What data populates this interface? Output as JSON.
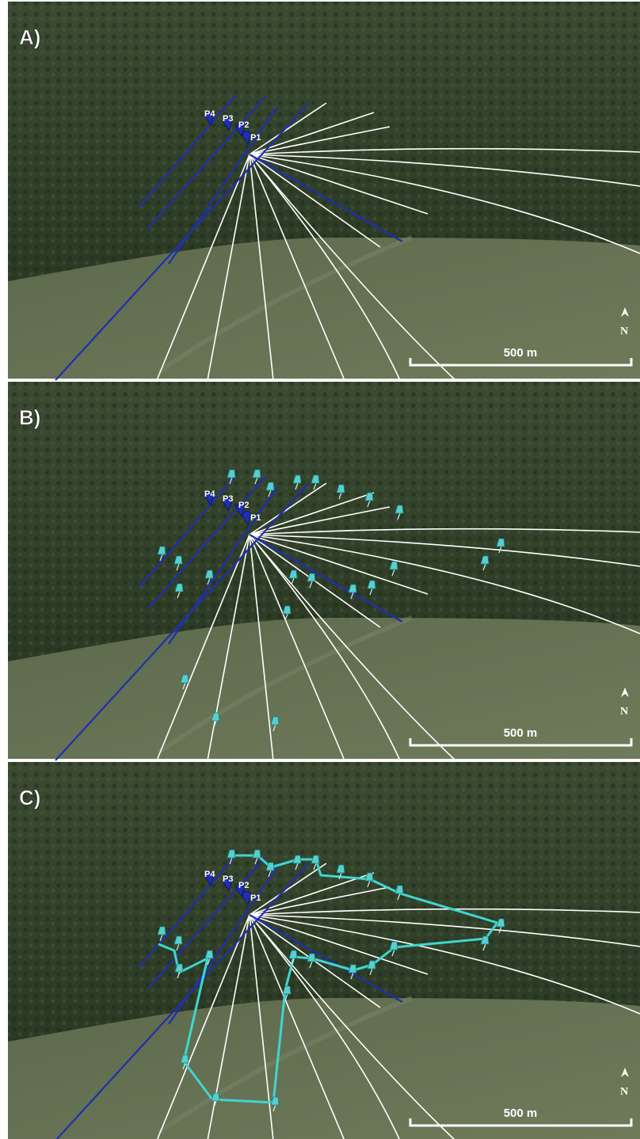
{
  "panels": [
    {
      "label": "A)"
    },
    {
      "label": "B)"
    },
    {
      "label": "C)"
    }
  ],
  "points": [
    "P1",
    "P2",
    "P3",
    "P4"
  ],
  "scale_bar": "500 m",
  "north": "N"
}
